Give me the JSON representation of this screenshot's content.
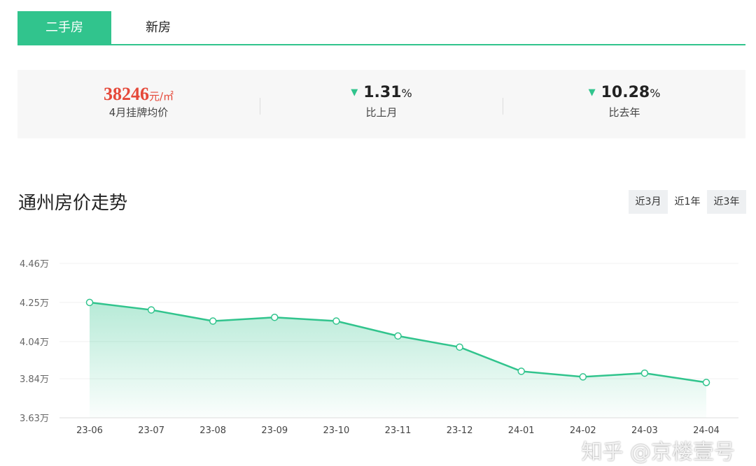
{
  "tabs": [
    {
      "label": "二手房",
      "active": true
    },
    {
      "label": "新房",
      "active": false
    }
  ],
  "stats": {
    "price": {
      "value": "38246",
      "unit": "元/㎡",
      "label": "4月挂牌均价"
    },
    "mom": {
      "value": "1.31",
      "unit": "%",
      "label": "比上月",
      "direction": "down"
    },
    "yoy": {
      "value": "10.28",
      "unit": "%",
      "label": "比去年",
      "direction": "down"
    }
  },
  "section_title": "通州房价走势",
  "ranges": [
    {
      "label": "近3月",
      "selected": false
    },
    {
      "label": "近1年",
      "selected": true
    },
    {
      "label": "近3年",
      "selected": false
    }
  ],
  "watermark": "知乎 @京楼壹号",
  "colors": {
    "accent": "#31c48d",
    "price": "#e5493a"
  },
  "chart_data": {
    "type": "area",
    "categories": [
      "23-06",
      "23-07",
      "23-08",
      "23-09",
      "23-10",
      "23-11",
      "23-12",
      "24-01",
      "24-02",
      "24-03",
      "24-04"
    ],
    "values": [
      4.25,
      4.21,
      4.15,
      4.17,
      4.15,
      4.07,
      4.01,
      3.88,
      3.85,
      3.87,
      3.82
    ],
    "yticks": [
      "4.46万",
      "4.25万",
      "4.04万",
      "3.84万",
      "3.63万"
    ],
    "ytick_values": [
      4.46,
      4.25,
      4.04,
      3.84,
      3.63
    ],
    "ylim": [
      3.63,
      4.46
    ],
    "grid": true
  }
}
